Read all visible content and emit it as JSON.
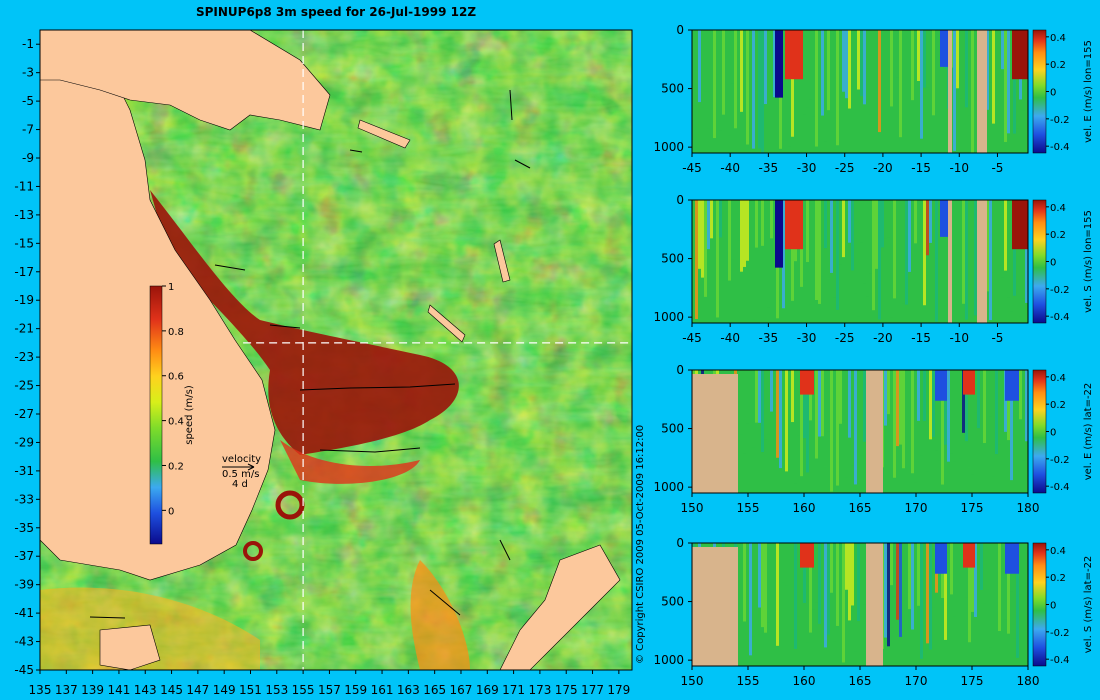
{
  "title": "SPINUP6p8 3m speed for 26-Jul-1999 12Z",
  "copyright": "© Copyright CSIRO 2009   05-Oct-2009 16:12:00",
  "colors": {
    "background": "#00c4f8",
    "land": "#fcc89c",
    "panel_land": "#d8b48c",
    "colormap": [
      "#0a0a8c",
      "#1e50e0",
      "#3caaf0",
      "#3cd09a",
      "#2fbf46",
      "#7fdc2a",
      "#d8ef1a",
      "#ffd21e",
      "#ff8c14",
      "#e0321a",
      "#9a140a"
    ]
  },
  "chart_data": [
    {
      "type": "heatmap",
      "title": "SPINUP6p8 3m speed for 26-Jul-1999 12Z",
      "x_ticks": [
        "135",
        "137",
        "139",
        "141",
        "143",
        "145",
        "147",
        "149",
        "151",
        "153",
        "155",
        "157",
        "159",
        "161",
        "163",
        "165",
        "167",
        "169",
        "171",
        "173",
        "175",
        "177",
        "179"
      ],
      "y_ticks": [
        "-1",
        "-3",
        "-5",
        "-7",
        "-9",
        "-11",
        "-13",
        "-15",
        "-17",
        "-19",
        "-21",
        "-23",
        "-25",
        "-27",
        "-29",
        "-31",
        "-33",
        "-35",
        "-37",
        "-39",
        "-41",
        "-43",
        "-45"
      ],
      "xlim": [
        135,
        180
      ],
      "ylim": [
        -45,
        0
      ],
      "section_lines": {
        "lon": 155,
        "lat": -22
      },
      "colorbar": {
        "label": "speed (m/s)",
        "ticks": [
          "1",
          "0.8",
          "0.6",
          "0.4",
          "0.2",
          "0"
        ],
        "range": [
          -0.15,
          1
        ]
      },
      "velocity_legend": [
        "velocity",
        "0.5 m/s",
        "4 d"
      ]
    },
    {
      "type": "heatmap",
      "x_ticks": [
        "-45",
        "-40",
        "-35",
        "-30",
        "-25",
        "-20",
        "-15",
        "-10",
        "-5"
      ],
      "y_ticks": [
        "0",
        "500",
        "1000"
      ],
      "xlim": [
        -45,
        -1
      ],
      "ylim": [
        1050,
        0
      ],
      "colorbar": {
        "label": "vel. E (m/s) lon=155",
        "ticks": [
          "0.4",
          "0.2",
          "0",
          "-0.2",
          "-0.4"
        ],
        "range": [
          -0.45,
          0.45
        ]
      }
    },
    {
      "type": "heatmap",
      "x_ticks": [
        "-45",
        "-40",
        "-35",
        "-30",
        "-25",
        "-20",
        "-15",
        "-10",
        "-5"
      ],
      "y_ticks": [
        "0",
        "500",
        "1000"
      ],
      "xlim": [
        -45,
        -1
      ],
      "ylim": [
        1050,
        0
      ],
      "colorbar": {
        "label": "vel. S (m/s) lon=155",
        "ticks": [
          "0.4",
          "0.2",
          "0",
          "-0.2",
          "-0.4"
        ],
        "range": [
          -0.45,
          0.45
        ]
      }
    },
    {
      "type": "heatmap",
      "x_ticks": [
        "150",
        "155",
        "160",
        "165",
        "170",
        "175",
        "180"
      ],
      "y_ticks": [
        "0",
        "500",
        "1000"
      ],
      "xlim": [
        150,
        180
      ],
      "ylim": [
        1050,
        0
      ],
      "colorbar": {
        "label": "vel. E (m/s) lat=-22",
        "ticks": [
          "0.4",
          "0.2",
          "0",
          "-0.2",
          "-0.4"
        ],
        "range": [
          -0.45,
          0.45
        ]
      }
    },
    {
      "type": "heatmap",
      "x_ticks": [
        "150",
        "155",
        "160",
        "165",
        "170",
        "175",
        "180"
      ],
      "y_ticks": [
        "0",
        "500",
        "1000"
      ],
      "xlim": [
        150,
        180
      ],
      "ylim": [
        1050,
        0
      ],
      "colorbar": {
        "label": "vel. S (m/s) lat=-22",
        "ticks": [
          "0.4",
          "0.2",
          "0",
          "-0.2",
          "-0.4"
        ],
        "range": [
          -0.45,
          0.45
        ]
      }
    }
  ]
}
